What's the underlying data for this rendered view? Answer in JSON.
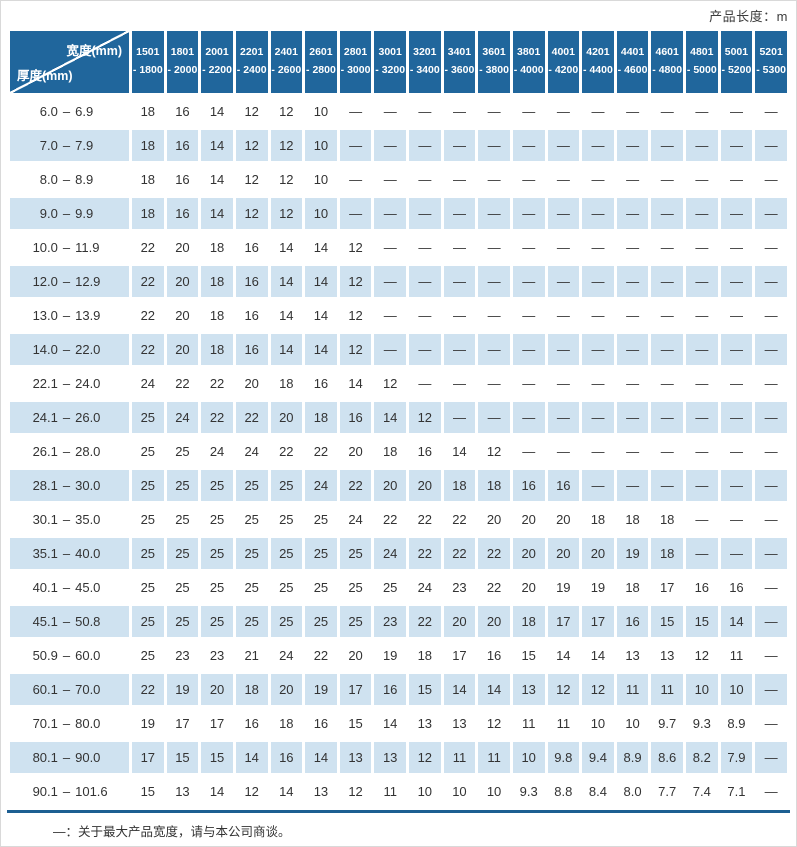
{
  "page": {
    "top_note": "产品长度：m",
    "footer_note": "—：关于最大产品宽度，请与本公司商谈。"
  },
  "chart_data": {
    "type": "table",
    "title": "产品长度：m",
    "corner": {
      "top_right": "宽度(mm)",
      "bottom_left": "厚度(mm)"
    },
    "range_separator": "–",
    "colors": {
      "header_bg": "#20669c",
      "header_text": "#ffffff",
      "row_bg": "#ffffff",
      "row_alt_bg": "#cfe2f0",
      "rule": "#1d5f92",
      "text": "#333333"
    },
    "columns": [
      {
        "line1": "1501",
        "line2": "- 1800"
      },
      {
        "line1": "1801",
        "line2": "- 2000"
      },
      {
        "line1": "2001",
        "line2": "- 2200"
      },
      {
        "line1": "2201",
        "line2": "- 2400"
      },
      {
        "line1": "2401",
        "line2": "- 2600"
      },
      {
        "line1": "2601",
        "line2": "- 2800"
      },
      {
        "line1": "2801",
        "line2": "- 3000"
      },
      {
        "line1": "3001",
        "line2": "- 3200"
      },
      {
        "line1": "3201",
        "line2": "- 3400"
      },
      {
        "line1": "3401",
        "line2": "- 3600"
      },
      {
        "line1": "3601",
        "line2": "- 3800"
      },
      {
        "line1": "3801",
        "line2": "- 4000"
      },
      {
        "line1": "4001",
        "line2": "- 4200"
      },
      {
        "line1": "4201",
        "line2": "- 4400"
      },
      {
        "line1": "4401",
        "line2": "- 4600"
      },
      {
        "line1": "4601",
        "line2": "- 4800"
      },
      {
        "line1": "4801",
        "line2": "- 5000"
      },
      {
        "line1": "5001",
        "line2": "- 5200"
      },
      {
        "line1": "5201",
        "line2": "- 5300"
      }
    ],
    "rows": [
      {
        "from": "6.0",
        "to": "6.9",
        "values": [
          "18",
          "16",
          "14",
          "12",
          "12",
          "10",
          "—",
          "—",
          "—",
          "—",
          "—",
          "—",
          "—",
          "—",
          "—",
          "—",
          "—",
          "—",
          "—"
        ]
      },
      {
        "from": "7.0",
        "to": "7.9",
        "values": [
          "18",
          "16",
          "14",
          "12",
          "12",
          "10",
          "—",
          "—",
          "—",
          "—",
          "—",
          "—",
          "—",
          "—",
          "—",
          "—",
          "—",
          "—",
          "—"
        ]
      },
      {
        "from": "8.0",
        "to": "8.9",
        "values": [
          "18",
          "16",
          "14",
          "12",
          "12",
          "10",
          "—",
          "—",
          "—",
          "—",
          "—",
          "—",
          "—",
          "—",
          "—",
          "—",
          "—",
          "—",
          "—"
        ]
      },
      {
        "from": "9.0",
        "to": "9.9",
        "values": [
          "18",
          "16",
          "14",
          "12",
          "12",
          "10",
          "—",
          "—",
          "—",
          "—",
          "—",
          "—",
          "—",
          "—",
          "—",
          "—",
          "—",
          "—",
          "—"
        ]
      },
      {
        "from": "10.0",
        "to": "11.9",
        "values": [
          "22",
          "20",
          "18",
          "16",
          "14",
          "14",
          "12",
          "—",
          "—",
          "—",
          "—",
          "—",
          "—",
          "—",
          "—",
          "—",
          "—",
          "—",
          "—"
        ]
      },
      {
        "from": "12.0",
        "to": "12.9",
        "values": [
          "22",
          "20",
          "18",
          "16",
          "14",
          "14",
          "12",
          "—",
          "—",
          "—",
          "—",
          "—",
          "—",
          "—",
          "—",
          "—",
          "—",
          "—",
          "—"
        ]
      },
      {
        "from": "13.0",
        "to": "13.9",
        "values": [
          "22",
          "20",
          "18",
          "16",
          "14",
          "14",
          "12",
          "—",
          "—",
          "—",
          "—",
          "—",
          "—",
          "—",
          "—",
          "—",
          "—",
          "—",
          "—"
        ]
      },
      {
        "from": "14.0",
        "to": "22.0",
        "values": [
          "22",
          "20",
          "18",
          "16",
          "14",
          "14",
          "12",
          "—",
          "—",
          "—",
          "—",
          "—",
          "—",
          "—",
          "—",
          "—",
          "—",
          "—",
          "—"
        ]
      },
      {
        "from": "22.1",
        "to": "24.0",
        "values": [
          "24",
          "22",
          "22",
          "20",
          "18",
          "16",
          "14",
          "12",
          "—",
          "—",
          "—",
          "—",
          "—",
          "—",
          "—",
          "—",
          "—",
          "—",
          "—"
        ]
      },
      {
        "from": "24.1",
        "to": "26.0",
        "values": [
          "25",
          "24",
          "22",
          "22",
          "20",
          "18",
          "16",
          "14",
          "12",
          "—",
          "—",
          "—",
          "—",
          "—",
          "—",
          "—",
          "—",
          "—",
          "—"
        ]
      },
      {
        "from": "26.1",
        "to": "28.0",
        "values": [
          "25",
          "25",
          "24",
          "24",
          "22",
          "22",
          "20",
          "18",
          "16",
          "14",
          "12",
          "—",
          "—",
          "—",
          "—",
          "—",
          "—",
          "—",
          "—"
        ]
      },
      {
        "from": "28.1",
        "to": "30.0",
        "values": [
          "25",
          "25",
          "25",
          "25",
          "25",
          "24",
          "22",
          "20",
          "20",
          "18",
          "18",
          "16",
          "16",
          "—",
          "—",
          "—",
          "—",
          "—",
          "—"
        ]
      },
      {
        "from": "30.1",
        "to": "35.0",
        "values": [
          "25",
          "25",
          "25",
          "25",
          "25",
          "25",
          "24",
          "22",
          "22",
          "22",
          "20",
          "20",
          "20",
          "18",
          "18",
          "18",
          "—",
          "—",
          "—"
        ]
      },
      {
        "from": "35.1",
        "to": "40.0",
        "values": [
          "25",
          "25",
          "25",
          "25",
          "25",
          "25",
          "25",
          "24",
          "22",
          "22",
          "22",
          "20",
          "20",
          "20",
          "19",
          "18",
          "—",
          "—",
          "—"
        ]
      },
      {
        "from": "40.1",
        "to": "45.0",
        "values": [
          "25",
          "25",
          "25",
          "25",
          "25",
          "25",
          "25",
          "25",
          "24",
          "23",
          "22",
          "20",
          "19",
          "19",
          "18",
          "17",
          "16",
          "16",
          "—"
        ]
      },
      {
        "from": "45.1",
        "to": "50.8",
        "values": [
          "25",
          "25",
          "25",
          "25",
          "25",
          "25",
          "25",
          "23",
          "22",
          "20",
          "20",
          "18",
          "17",
          "17",
          "16",
          "15",
          "15",
          "14",
          "—"
        ]
      },
      {
        "from": "50.9",
        "to": "60.0",
        "values": [
          "25",
          "23",
          "23",
          "21",
          "24",
          "22",
          "20",
          "19",
          "18",
          "17",
          "16",
          "15",
          "14",
          "14",
          "13",
          "13",
          "12",
          "11",
          "—"
        ]
      },
      {
        "from": "60.1",
        "to": "70.0",
        "values": [
          "22",
          "19",
          "20",
          "18",
          "20",
          "19",
          "17",
          "16",
          "15",
          "14",
          "14",
          "13",
          "12",
          "12",
          "11",
          "11",
          "10",
          "10",
          "—"
        ]
      },
      {
        "from": "70.1",
        "to": "80.0",
        "values": [
          "19",
          "17",
          "17",
          "16",
          "18",
          "16",
          "15",
          "14",
          "13",
          "13",
          "12",
          "11",
          "11",
          "10",
          "10",
          "9.7",
          "9.3",
          "8.9",
          "—"
        ]
      },
      {
        "from": "80.1",
        "to": "90.0",
        "values": [
          "17",
          "15",
          "15",
          "14",
          "16",
          "14",
          "13",
          "13",
          "12",
          "11",
          "11",
          "10",
          "9.8",
          "9.4",
          "8.9",
          "8.6",
          "8.2",
          "7.9",
          "—"
        ]
      },
      {
        "from": "90.1",
        "to": "101.6",
        "values": [
          "15",
          "13",
          "14",
          "12",
          "14",
          "13",
          "12",
          "11",
          "10",
          "10",
          "10",
          "9.3",
          "8.8",
          "8.4",
          "8.0",
          "7.7",
          "7.4",
          "7.1",
          "—"
        ]
      }
    ]
  }
}
